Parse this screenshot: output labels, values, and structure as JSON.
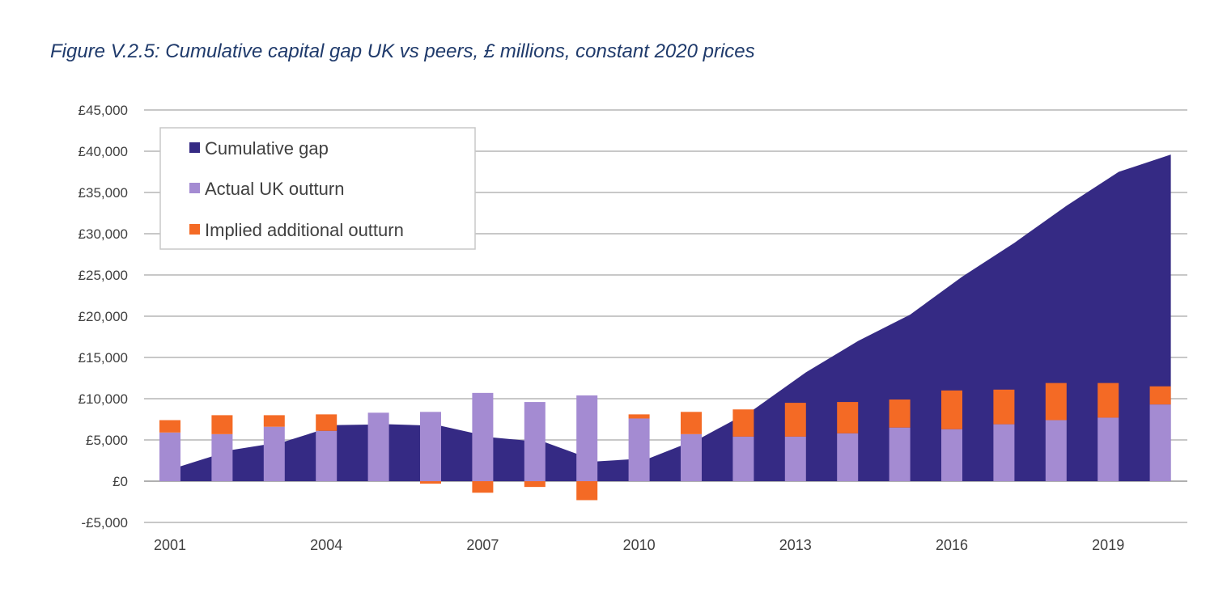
{
  "title": "Figure V.2.5: Cumulative capital gap UK vs peers, £ millions, constant 2020 prices",
  "chart_data": {
    "type": "bar",
    "title": "Figure V.2.5: Cumulative capital gap UK vs peers, £ millions, constant 2020 prices",
    "xlabel": "",
    "ylabel": "",
    "ylim": [
      -5000,
      45000
    ],
    "yticks": [
      45000,
      40000,
      35000,
      30000,
      25000,
      20000,
      15000,
      10000,
      5000,
      0,
      -5000
    ],
    "ytick_labels": [
      "£45,000",
      "£40,000",
      "£35,000",
      "£30,000",
      "£25,000",
      "£20,000",
      "£15,000",
      "£10,000",
      "£5,000",
      "£0",
      "-£5,000"
    ],
    "x": [
      2001,
      2002,
      2003,
      2004,
      2005,
      2006,
      2007,
      2008,
      2009,
      2010,
      2011,
      2012,
      2013,
      2014,
      2015,
      2016,
      2017,
      2018,
      2019,
      2020
    ],
    "xtick_labels": [
      "2001",
      "2004",
      "2007",
      "2010",
      "2013",
      "2016",
      "2019"
    ],
    "legend_position": "top-left",
    "grid": true,
    "series": [
      {
        "name": "Cumulative gap",
        "type": "area",
        "color": "#352a84",
        "values": [
          1800,
          3800,
          4800,
          6800,
          6900,
          6700,
          5300,
          4700,
          2400,
          2800,
          5300,
          8700,
          13200,
          17000,
          20200,
          24800,
          28900,
          33400,
          37500,
          39600
        ]
      },
      {
        "name": "Actual UK outturn",
        "type": "bar",
        "color": "#a48bd2",
        "values": [
          5900,
          5700,
          6600,
          6100,
          8300,
          8400,
          10700,
          9600,
          10400,
          7600,
          5700,
          5400,
          5400,
          5800,
          6500,
          6300,
          6900,
          7400,
          7700,
          9300
        ]
      },
      {
        "name": "Implied additional outturn",
        "type": "bar",
        "color": "#f46a25",
        "values": [
          1500,
          2300,
          1400,
          2000,
          0,
          -300,
          -1400,
          -700,
          -2300,
          500,
          2700,
          3300,
          4100,
          3800,
          3400,
          4700,
          4200,
          4500,
          4200,
          2200
        ]
      }
    ]
  }
}
